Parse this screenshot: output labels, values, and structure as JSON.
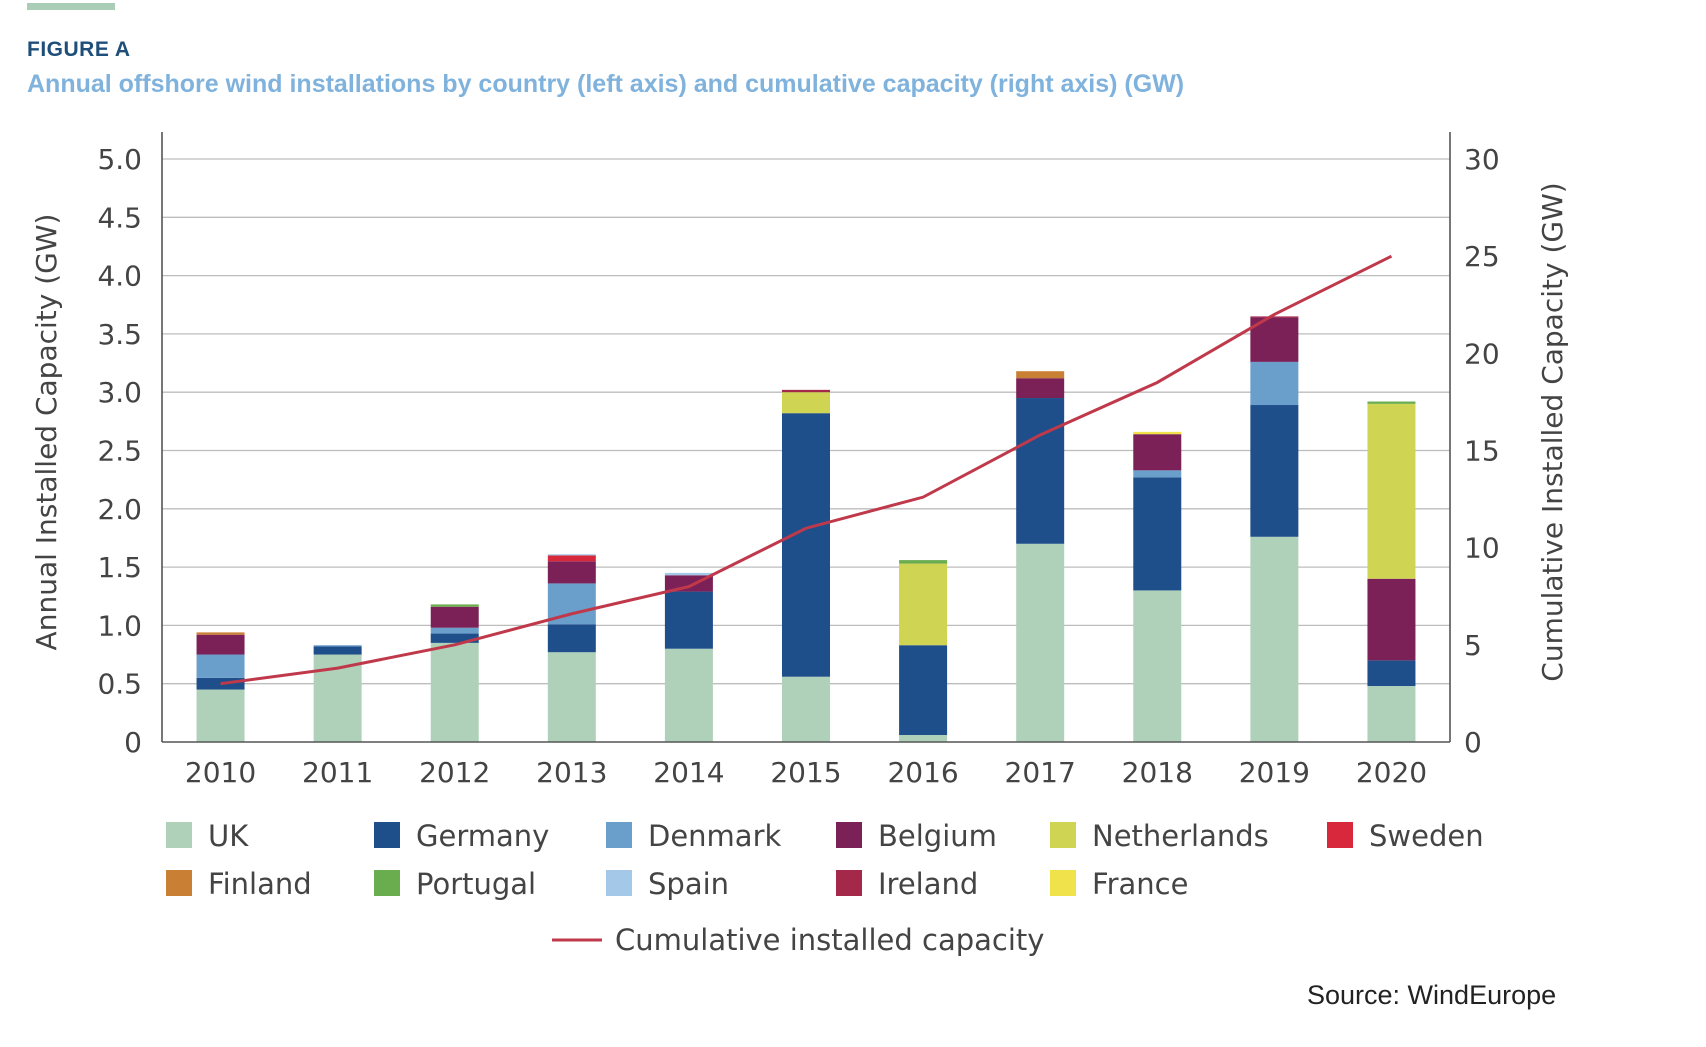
{
  "header": {
    "figure_label": "FIGURE A",
    "subtitle": "Annual offshore wind installations by country (left axis) and cumulative capacity (right axis) (GW)"
  },
  "source": "Source: WindEurope",
  "chart_data": {
    "type": "bar",
    "stacked": true,
    "categories": [
      "2010",
      "2011",
      "2012",
      "2013",
      "2014",
      "2015",
      "2016",
      "2017",
      "2018",
      "2019",
      "2020"
    ],
    "ylabel": "Annual Installed Capacity (GW)",
    "ylim": [
      0,
      5.0
    ],
    "yticks": [
      "0",
      "0.5",
      "1.0",
      "1.5",
      "2.0",
      "2.5",
      "3.0",
      "3.5",
      "4.0",
      "4.5",
      "5.0"
    ],
    "y2label": "Cumulative Installed Capacity (GW)",
    "y2lim": [
      0,
      30
    ],
    "y2ticks": [
      "0",
      "5",
      "10",
      "15",
      "20",
      "25",
      "30"
    ],
    "grid": true,
    "legend_placement": "bottom",
    "series": [
      {
        "name": "UK",
        "color": "#afd1b9",
        "values": [
          0.45,
          0.75,
          0.85,
          0.77,
          0.8,
          0.56,
          0.06,
          1.7,
          1.3,
          1.76,
          0.48
        ]
      },
      {
        "name": "Germany",
        "color": "#1e4f8a",
        "values": [
          0.1,
          0.07,
          0.08,
          0.24,
          0.49,
          2.26,
          0.77,
          1.25,
          0.97,
          1.13,
          0.22
        ]
      },
      {
        "name": "Denmark",
        "color": "#6a9ecb",
        "values": [
          0.2,
          0.01,
          0.05,
          0.35,
          0,
          0,
          0,
          0,
          0.06,
          0.37,
          0
        ]
      },
      {
        "name": "Belgium",
        "color": "#7b2157",
        "values": [
          0.17,
          0,
          0.18,
          0.19,
          0.14,
          0,
          0,
          0.17,
          0.31,
          0.38,
          0.7
        ]
      },
      {
        "name": "Netherlands",
        "color": "#cfd552",
        "values": [
          0,
          0,
          0,
          0,
          0,
          0.18,
          0.7,
          0,
          0,
          0,
          1.5
        ]
      },
      {
        "name": "Sweden",
        "color": "#d7283c",
        "values": [
          0,
          0,
          0,
          0.05,
          0,
          0,
          0,
          0,
          0,
          0,
          0
        ]
      },
      {
        "name": "Finland",
        "color": "#c97f34",
        "values": [
          0.02,
          0,
          0,
          0,
          0,
          0,
          0,
          0.06,
          0,
          0,
          0
        ]
      },
      {
        "name": "Portugal",
        "color": "#6aad4f",
        "values": [
          0,
          0,
          0.02,
          0,
          0,
          0,
          0.03,
          0,
          0,
          0,
          0.02
        ]
      },
      {
        "name": "Spain",
        "color": "#a4c8e8",
        "values": [
          0,
          0,
          0,
          0.01,
          0.02,
          0,
          0,
          0,
          0,
          0,
          0
        ]
      },
      {
        "name": "Ireland",
        "color": "#a3284a",
        "values": [
          0,
          0,
          0,
          0,
          0,
          0.02,
          0,
          0,
          0,
          0.01,
          0
        ]
      },
      {
        "name": "France",
        "color": "#f0e24a",
        "values": [
          0,
          0,
          0,
          0,
          0,
          0,
          0,
          0,
          0.02,
          0,
          0
        ]
      }
    ],
    "line": {
      "name": "Cumulative installed capacity",
      "color": "#c0394b",
      "axis": "right",
      "values": [
        3.0,
        3.8,
        5.0,
        6.6,
        8.0,
        11.0,
        12.6,
        15.8,
        18.5,
        22.0,
        25.0
      ]
    }
  }
}
